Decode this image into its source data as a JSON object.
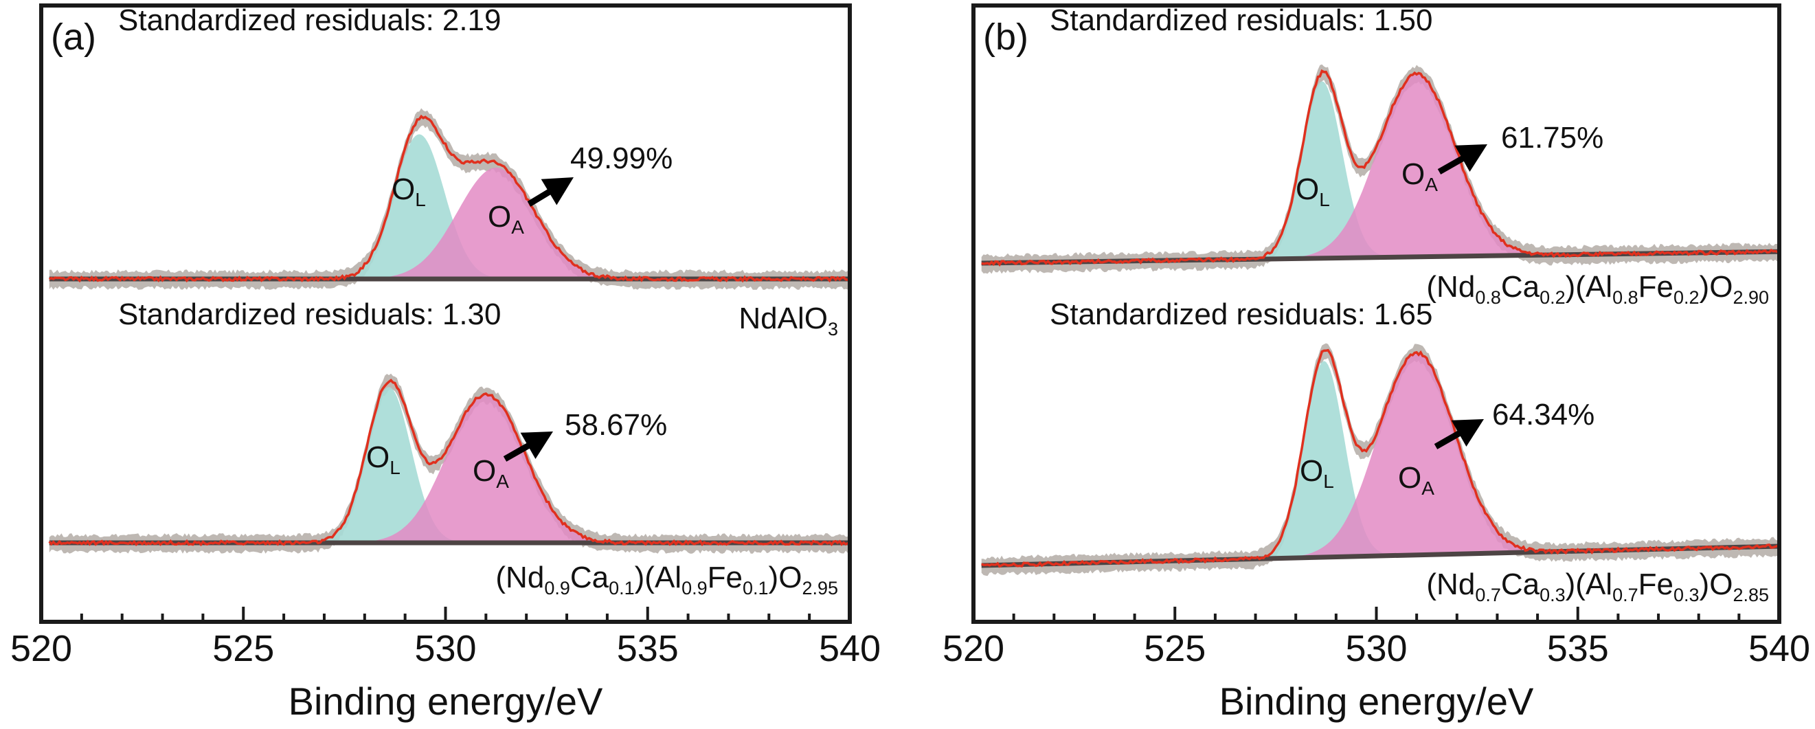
{
  "figure": {
    "colors": {
      "envelope": "#b3aba6",
      "fit": "#e0301e",
      "ol_fill": "#a6dbd6",
      "oa_fill": "#e38bc4",
      "baseline": "#4d4444",
      "frame": "#1a1a1a",
      "arrow": "#000000"
    }
  },
  "chart_data": [
    {
      "panel_label": "(a)",
      "type": "line",
      "xlabel": "Binding energy/eV",
      "xlim": [
        520,
        540
      ],
      "xticks": [
        "520",
        "525",
        "530",
        "535",
        "540"
      ],
      "spectra": [
        {
          "residual_text": "Standardized residuals:",
          "residual_value": "2.19",
          "composition": "NdAlO",
          "composition_parts": [
            {
              "t": "NdAlO",
              "sub": false
            },
            {
              "t": "3",
              "sub": true
            }
          ],
          "ol_label": "O",
          "ol_sub": "L",
          "oa_label": "O",
          "oa_sub": "A",
          "oa_percent": "49.99%",
          "peaks": [
            {
              "name": "OL",
              "center": 529.35,
              "height": 0.78,
              "width": 0.62
            },
            {
              "name": "OA",
              "center": 531.25,
              "height": 0.6,
              "width": 0.95
            }
          ],
          "fit_bumps": [
            {
              "center": 530.6,
              "height": 0.05,
              "width": 0.45
            }
          ],
          "baseline_y": [
            0.0,
            0.0
          ],
          "x_start": 520.2
        },
        {
          "residual_text": "Standardized residuals:",
          "residual_value": "1.30",
          "composition": "(Nd0.9Ca0.1)(Al0.9Fe0.1)O2.95",
          "composition_parts": [
            {
              "t": "(Nd",
              "sub": false
            },
            {
              "t": "0.9",
              "sub": true
            },
            {
              "t": "Ca",
              "sub": false
            },
            {
              "t": "0.1",
              "sub": true
            },
            {
              "t": ")(Al",
              "sub": false
            },
            {
              "t": "0.9",
              "sub": true
            },
            {
              "t": "Fe",
              "sub": false
            },
            {
              "t": "0.1",
              "sub": true
            },
            {
              "t": ")O",
              "sub": false
            },
            {
              "t": "2.95",
              "sub": true
            }
          ],
          "ol_label": "O",
          "ol_sub": "L",
          "oa_label": "O",
          "oa_sub": "A",
          "oa_percent": "58.67%",
          "peaks": [
            {
              "name": "OL",
              "center": 528.6,
              "height": 0.84,
              "width": 0.55
            },
            {
              "name": "OA",
              "center": 531.0,
              "height": 0.8,
              "width": 0.95
            }
          ],
          "fit_bumps": [],
          "baseline_y": [
            0.0,
            0.0
          ],
          "x_start": 520.2
        }
      ]
    },
    {
      "panel_label": "(b)",
      "type": "line",
      "xlabel": "Binding energy/eV",
      "xlim": [
        520,
        540
      ],
      "xticks": [
        "520",
        "525",
        "530",
        "535",
        "540"
      ],
      "spectra": [
        {
          "residual_text": "Standardized residuals:",
          "residual_value": "1.50",
          "composition": "(Nd0.8Ca0.2)(Al0.8Fe0.2)O2.90",
          "composition_parts": [
            {
              "t": "(Nd",
              "sub": false
            },
            {
              "t": "0.8",
              "sub": true
            },
            {
              "t": "Ca",
              "sub": false
            },
            {
              "t": "0.2",
              "sub": true
            },
            {
              "t": ")(Al",
              "sub": false
            },
            {
              "t": "0.8",
              "sub": true
            },
            {
              "t": "Fe",
              "sub": false
            },
            {
              "t": "0.2",
              "sub": true
            },
            {
              "t": ")O",
              "sub": false
            },
            {
              "t": "2.90",
              "sub": true
            }
          ],
          "ol_label": "O",
          "ol_sub": "L",
          "oa_label": "O",
          "oa_sub": "A",
          "oa_percent": "61.75%",
          "peaks": [
            {
              "name": "OL",
              "center": 528.65,
              "height": 0.92,
              "width": 0.5
            },
            {
              "name": "OA",
              "center": 531.0,
              "height": 0.95,
              "width": 0.95
            }
          ],
          "fit_bumps": [],
          "baseline_y": [
            0.0,
            0.06
          ],
          "x_start": 520.2
        },
        {
          "residual_text": "Standardized residuals:",
          "residual_value": "1.65",
          "composition": "(Nd0.7Ca0.3)(Al0.7Fe0.3)O2.85",
          "composition_parts": [
            {
              "t": "(Nd",
              "sub": false
            },
            {
              "t": "0.7",
              "sub": true
            },
            {
              "t": "Ca",
              "sub": false
            },
            {
              "t": "0.3",
              "sub": true
            },
            {
              "t": ")(Al",
              "sub": false
            },
            {
              "t": "0.7",
              "sub": true
            },
            {
              "t": "Fe",
              "sub": false
            },
            {
              "t": "0.3",
              "sub": true
            },
            {
              "t": ")O",
              "sub": false
            },
            {
              "t": "2.85",
              "sub": true
            }
          ],
          "ol_label": "O",
          "ol_sub": "L",
          "oa_label": "O",
          "oa_sub": "A",
          "oa_percent": "64.34%",
          "peaks": [
            {
              "name": "OL",
              "center": 528.7,
              "height": 1.02,
              "width": 0.5
            },
            {
              "name": "OA",
              "center": 531.0,
              "height": 1.05,
              "width": 0.95
            }
          ],
          "fit_bumps": [],
          "baseline_y": [
            0.0,
            0.1
          ],
          "x_start": 520.2
        }
      ]
    }
  ]
}
